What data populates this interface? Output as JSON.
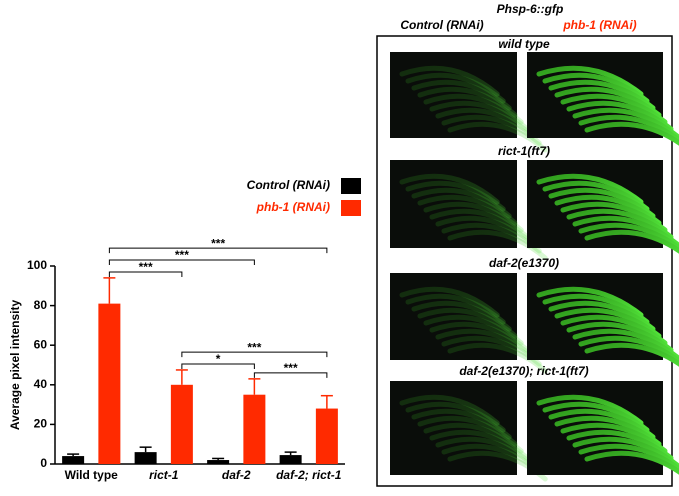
{
  "chart_data": {
    "type": "bar",
    "y_label": "Average pixel intensity",
    "categories": [
      "Wild type",
      "rict-1",
      "daf-2",
      "daf-2; rict-1"
    ],
    "series": [
      {
        "name": "Control (RNAi)",
        "color": "#000000",
        "values": [
          4,
          6,
          2,
          4.5
        ],
        "errors": [
          1,
          2.5,
          0.8,
          1.5
        ]
      },
      {
        "name": "phb-1 (RNAi)",
        "color": "#ff2a00",
        "values": [
          81,
          40,
          35,
          28
        ],
        "errors": [
          13,
          7.5,
          8,
          6.5
        ]
      }
    ],
    "ylim": [
      0,
      100
    ],
    "yticks": [
      0,
      20,
      40,
      60,
      80,
      100
    ],
    "significance": [
      {
        "from": 0,
        "to": 1,
        "label": "***"
      },
      {
        "from": 0,
        "to": 2,
        "label": "***"
      },
      {
        "from": 0,
        "to": 3,
        "label": "***"
      },
      {
        "from": 1,
        "to": 2,
        "label": "*"
      },
      {
        "from": 2,
        "to": 3,
        "label": "***"
      },
      {
        "from": 1,
        "to": 3,
        "label": "***"
      }
    ]
  },
  "image_panel": {
    "title": "Phsp-6::gfp",
    "column_labels": [
      "Control (RNAi)",
      "phb-1 (RNAi)"
    ],
    "row_labels": [
      "wild type",
      "rict-1(ft7)",
      "daf-2(e1370)",
      "daf-2(e1370); rict-1(ft7)"
    ]
  }
}
